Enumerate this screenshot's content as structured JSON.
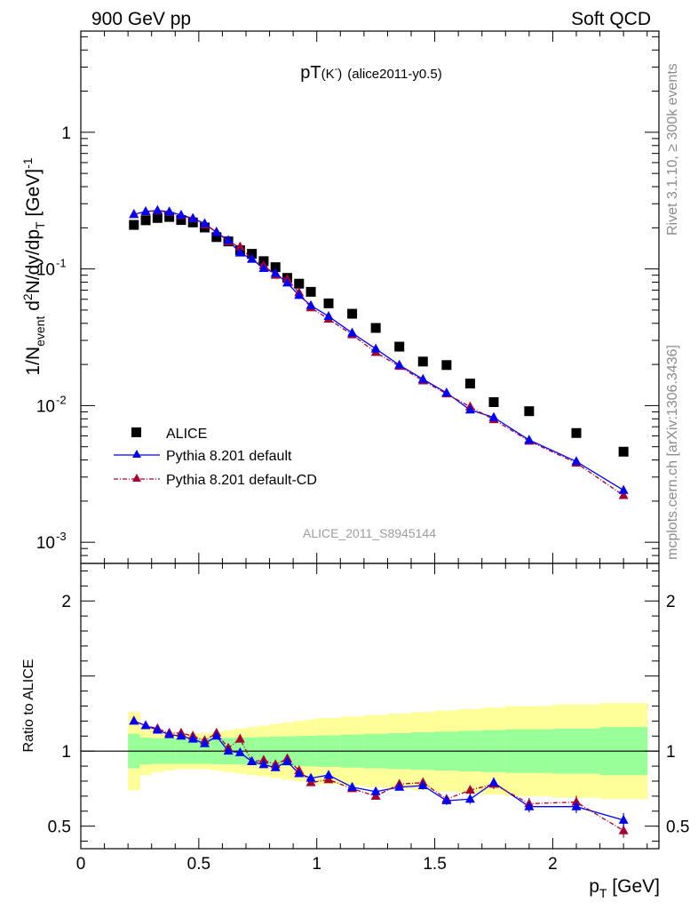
{
  "header": {
    "left": "900 GeV pp",
    "right": "Soft QCD"
  },
  "side_labels": {
    "rivet": "Rivet 3.1.10, ≥ 300k events",
    "mcplots": "mcplots.cern.ch [arXiv:1306.3436]"
  },
  "title": {
    "main": "pT",
    "particle": "(K",
    "sup": "-",
    "close": ")",
    "tag": "(alice2011-y0.5)"
  },
  "watermark": "ALICE_2011_S8945144",
  "ylabel_top": {
    "p1": "1/N",
    "p2": "event",
    "p3": " d",
    "p4": "2",
    "p5": "N/dy/dp",
    "p6": "T",
    "p7": " [GeV]",
    "p8": "-1"
  },
  "ylabel_bottom": "Ratio to ALICE",
  "xlabel": {
    "p1": "p",
    "p2": "T",
    "p3": " [GeV]"
  },
  "colors": {
    "alice": "#000000",
    "pythia_default": "#0000ff",
    "pythia_cd": "#a50030",
    "band_inner": "#99ff99",
    "band_outer": "#ffff99"
  },
  "chart_data": {
    "type": "scatter",
    "x": [
      0.225,
      0.275,
      0.325,
      0.375,
      0.425,
      0.475,
      0.525,
      0.575,
      0.625,
      0.675,
      0.725,
      0.775,
      0.825,
      0.875,
      0.925,
      0.975,
      1.05,
      1.15,
      1.25,
      1.35,
      1.45,
      1.55,
      1.65,
      1.75,
      1.9,
      2.1,
      2.3
    ],
    "xlim": [
      0,
      2.45
    ],
    "top_panel": {
      "yscale": "log",
      "ylim": [
        0.0007,
        5.5
      ],
      "yticks": [
        {
          "v": 1,
          "label": "1"
        },
        {
          "v": 0.1,
          "label": "10",
          "sup": "-1"
        },
        {
          "v": 0.01,
          "label": "10",
          "sup": "-2"
        },
        {
          "v": 0.001,
          "label": "10",
          "sup": "-3"
        }
      ],
      "series": [
        {
          "name": "ALICE",
          "values": [
            0.21,
            0.227,
            0.236,
            0.24,
            0.228,
            0.219,
            0.201,
            0.171,
            0.159,
            0.137,
            0.129,
            0.114,
            0.103,
            0.086,
            0.078,
            0.068,
            0.056,
            0.047,
            0.037,
            0.027,
            0.021,
            0.0198,
            0.0145,
            0.0106,
            0.0091,
            0.0063,
            0.0046
          ]
        },
        {
          "name": "Pythia 8.201 default",
          "values": [
            0.251,
            0.263,
            0.268,
            0.262,
            0.248,
            0.235,
            0.215,
            0.185,
            0.162,
            0.131,
            0.118,
            0.101,
            0.093,
            0.079,
            0.064,
            0.054,
            0.045,
            0.034,
            0.026,
            0.0198,
            0.0156,
            0.0124,
            0.0093,
            0.0082,
            0.0056,
            0.0039,
            0.0024
          ]
        },
        {
          "name": "Pythia 8.201 default-CD",
          "values": [
            0.25,
            0.262,
            0.266,
            0.26,
            0.246,
            0.233,
            0.21,
            0.187,
            0.158,
            0.145,
            0.118,
            0.106,
            0.09,
            0.084,
            0.067,
            0.052,
            0.043,
            0.033,
            0.0245,
            0.0194,
            0.0152,
            0.0122,
            0.0098,
            0.0079,
            0.0055,
            0.0038,
            0.0022
          ]
        }
      ]
    },
    "bottom_panel": {
      "ylim": [
        0.35,
        2.25
      ],
      "yticks": [
        {
          "v": 0.5,
          "label": "0.5"
        },
        {
          "v": 1,
          "label": "1"
        },
        {
          "v": 2,
          "label": "2"
        }
      ],
      "reference": 1,
      "band_edges": [
        0.2,
        0.25,
        0.3,
        0.35,
        0.4,
        0.45,
        0.5,
        0.55,
        0.6,
        0.65,
        0.7,
        0.75,
        0.8,
        0.85,
        0.9,
        0.95,
        1.0,
        1.1,
        1.2,
        1.3,
        1.4,
        1.5,
        1.6,
        1.7,
        1.8,
        2.0,
        2.2,
        2.4
      ],
      "band_inner": [
        0.115,
        0.09,
        0.085,
        0.085,
        0.085,
        0.085,
        0.085,
        0.087,
        0.088,
        0.09,
        0.092,
        0.094,
        0.096,
        0.098,
        0.1,
        0.102,
        0.105,
        0.11,
        0.115,
        0.12,
        0.125,
        0.13,
        0.135,
        0.14,
        0.145,
        0.15,
        0.16
      ],
      "band_outer": [
        0.26,
        0.16,
        0.14,
        0.13,
        0.12,
        0.12,
        0.12,
        0.13,
        0.14,
        0.15,
        0.16,
        0.17,
        0.18,
        0.19,
        0.2,
        0.21,
        0.22,
        0.23,
        0.24,
        0.25,
        0.26,
        0.27,
        0.28,
        0.29,
        0.3,
        0.31,
        0.32
      ],
      "series": [
        {
          "name": "Pythia 8.201 default",
          "values": [
            1.2,
            1.17,
            1.14,
            1.11,
            1.1,
            1.08,
            1.05,
            1.1,
            1.0,
            0.99,
            0.93,
            0.91,
            0.89,
            0.93,
            0.85,
            0.82,
            0.84,
            0.76,
            0.73,
            0.76,
            0.77,
            0.67,
            0.68,
            0.79,
            0.63,
            0.63,
            0.54
          ]
        },
        {
          "name": "Pythia 8.201 default-CD",
          "values": [
            1.2,
            1.17,
            1.15,
            1.12,
            1.12,
            1.1,
            1.07,
            1.12,
            1.02,
            1.08,
            0.93,
            0.94,
            0.91,
            0.95,
            0.87,
            0.79,
            0.81,
            0.75,
            0.7,
            0.78,
            0.79,
            0.68,
            0.74,
            0.78,
            0.65,
            0.66,
            0.47
          ]
        }
      ]
    },
    "xticks": [
      {
        "v": 0,
        "label": "0"
      },
      {
        "v": 0.5,
        "label": "0.5"
      },
      {
        "v": 1,
        "label": "1"
      },
      {
        "v": 1.5,
        "label": "1.5"
      },
      {
        "v": 2,
        "label": "2"
      }
    ],
    "legend": {
      "position": "bottom-left",
      "entries": [
        "ALICE",
        "Pythia 8.201 default",
        "Pythia 8.201 default-CD"
      ]
    }
  }
}
